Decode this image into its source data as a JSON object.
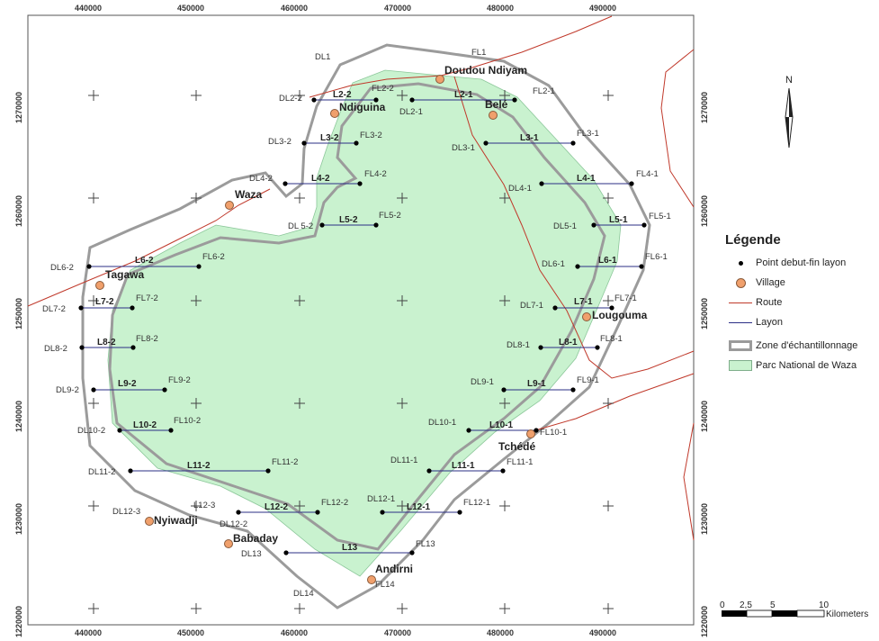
{
  "top_ticks": [
    "440000",
    "450000",
    "460000",
    "470000",
    "480000",
    "490000"
  ],
  "bottom_ticks": [
    "440000",
    "450000",
    "460000",
    "470000",
    "480000",
    "490000"
  ],
  "y_ticks": [
    "1270000",
    "1260000",
    "1250000",
    "1240000",
    "1230000",
    "1220000"
  ],
  "transect_labels": [
    "L2-2",
    "L2-1",
    "L3-2",
    "L3-1",
    "L4-2",
    "L4-1",
    "L5-2",
    "L5-1",
    "L6-2",
    "L6-1",
    "L7-2",
    "L7-1",
    "L8-2",
    "L8-1",
    "L9-2",
    "L9-1",
    "L10-2",
    "L10-1",
    "L11-2",
    "L11-1",
    "L12-2",
    "L12-1",
    "L13"
  ],
  "start_labels": [
    "DL1",
    "DL2-2",
    "DL2-1",
    "DL3-2",
    "DL3-1",
    "DL4-2",
    "DL4-1",
    "DL 5-2",
    "DL5-1",
    "DL6-2",
    "DL6-1",
    "DL7-2",
    "DL7-1",
    "DL8-2",
    "DL8-1",
    "DL9-2",
    "DL9-1",
    "DL10-2",
    "DL10-1",
    "DL11-2",
    "DL11-1",
    "DL12-3",
    "DL12-2",
    "DL12-1",
    "DL13",
    "DL14",
    "L12-3"
  ],
  "end_labels": [
    "FL1",
    "FL2-2",
    "FL2-1",
    "FL3-2",
    "FL3-1",
    "FL4-2",
    "FL4-1",
    "FL5-2",
    "FL5-1",
    "FL6-2",
    "FL6-1",
    "FL7-2",
    "FL7-1",
    "FL8-2",
    "FL8-1",
    "FL9-2",
    "FL9-1",
    "FL10-2",
    "FL10-1",
    "FL11-2",
    "FL11-1",
    "FL12-2",
    "FL12-1",
    "FL13",
    "FL14"
  ],
  "villages": [
    "Doudou Ndiyam",
    "Ndiguina",
    "Belé",
    "Waza",
    "Tagawa",
    "Lougouma",
    "Tchédé",
    "Nyiwadji",
    "Babaday",
    "Andirni"
  ],
  "north_label": "N",
  "legend": {
    "title": "Légende",
    "items": [
      "Point debut-fin layon",
      "Village",
      "Route",
      "Layon",
      "Zone d'échantillonnage",
      "Parc National de Waza"
    ]
  },
  "scale": {
    "ticks": [
      "0",
      "2,5",
      "5",
      "10"
    ],
    "unit": "Kilometers"
  },
  "colors": {
    "park": "#c9f2cf",
    "zone": "#9b9b9b",
    "route": "#c0392b",
    "layon": "#2b2f86",
    "village": "#f0a06c"
  }
}
